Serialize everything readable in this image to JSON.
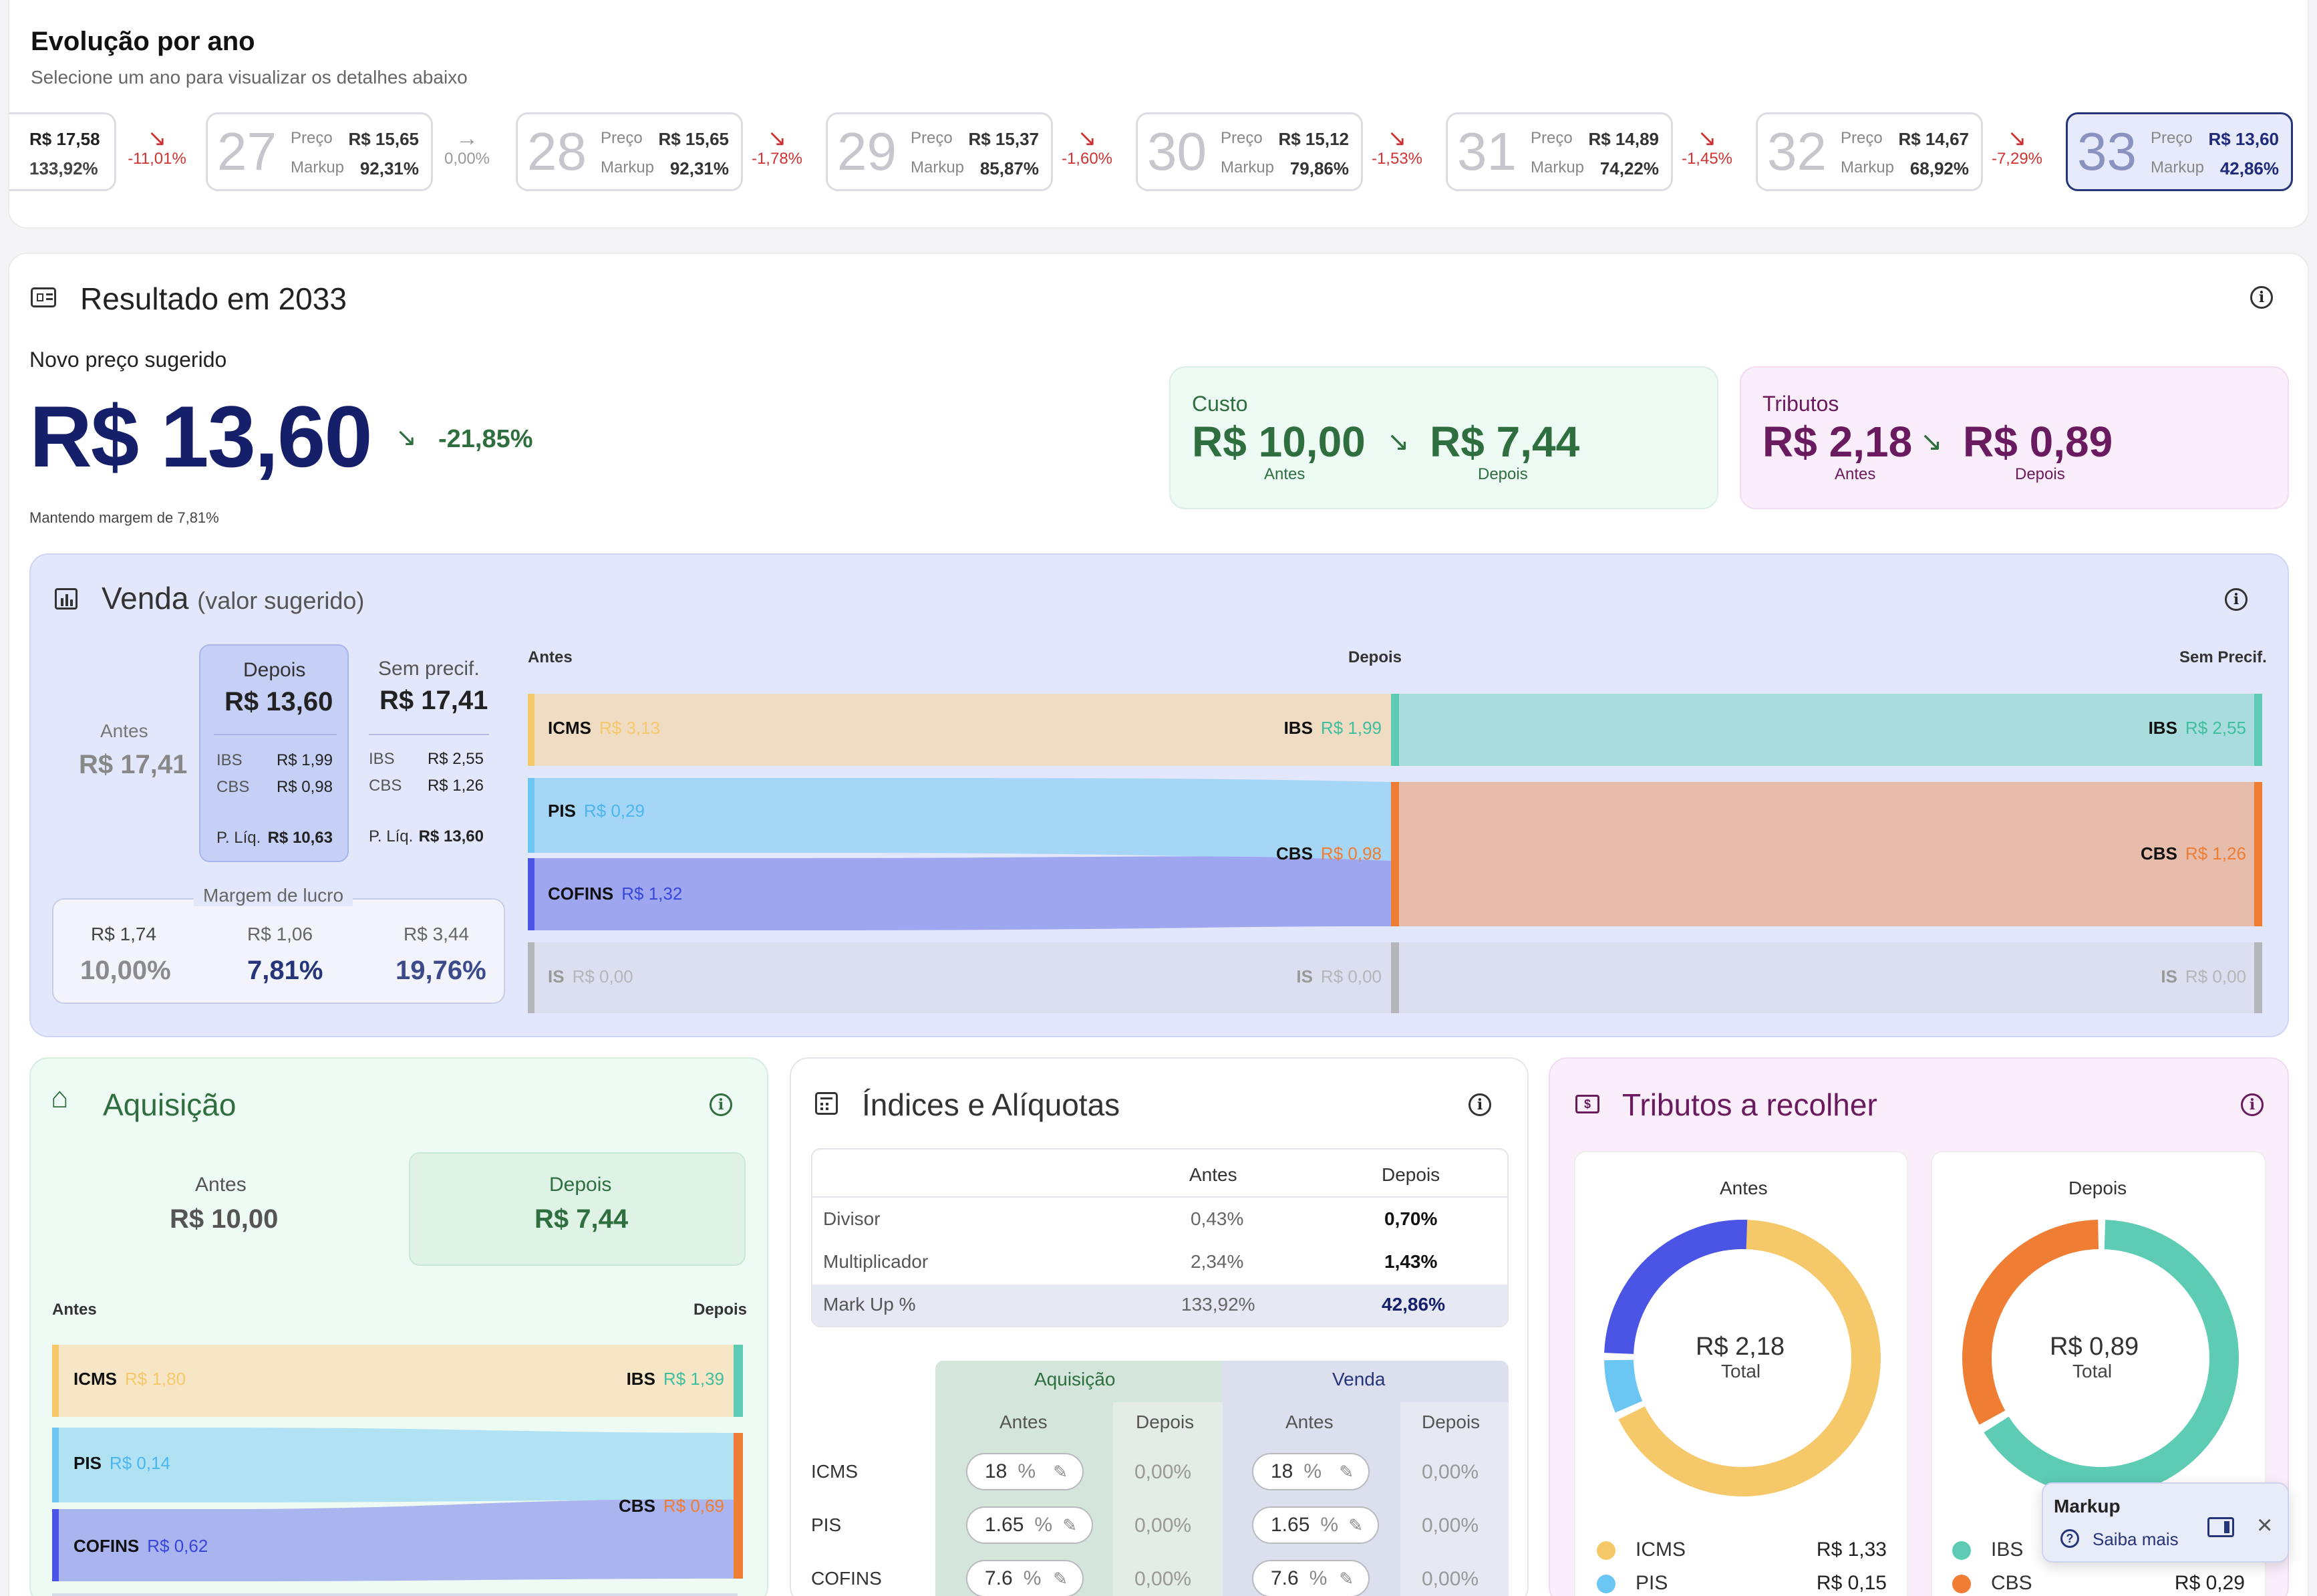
{
  "evolution": {
    "title": "Evolução por ano",
    "subtitle": "Selecione um ano para visualizar os detalhes abaixo",
    "first": {
      "price": "R$ 17,58",
      "markup": "133,92%"
    },
    "deltas": [
      "-11,01%",
      "0,00%",
      "-1,78%",
      "-1,60%",
      "-1,53%",
      "-1,45%",
      "-7,29%"
    ],
    "price_label": "Preço",
    "markup_label": "Markup",
    "years": [
      {
        "year": "27",
        "price": "R$ 15,65",
        "markup": "92,31%"
      },
      {
        "year": "28",
        "price": "R$ 15,65",
        "markup": "92,31%"
      },
      {
        "year": "29",
        "price": "R$ 15,37",
        "markup": "85,87%"
      },
      {
        "year": "30",
        "price": "R$ 15,12",
        "markup": "79,86%"
      },
      {
        "year": "31",
        "price": "R$ 14,89",
        "markup": "74,22%"
      },
      {
        "year": "32",
        "price": "R$ 14,67",
        "markup": "68,92%"
      },
      {
        "year": "33",
        "price": "R$ 13,60",
        "markup": "42,86%"
      }
    ]
  },
  "result": {
    "title": "Resultado em 2033",
    "suggested_label": "Novo preço sugerido",
    "price": "R$ 13,60",
    "delta": "-21,85%",
    "margin_note": "Mantendo margem de 7,81%",
    "cost": {
      "title": "Custo",
      "before": "R$ 10,00",
      "after": "R$ 7,44",
      "before_label": "Antes",
      "after_label": "Depois"
    },
    "taxes": {
      "title": "Tributos",
      "before": "R$ 2,18",
      "after": "R$ 0,89",
      "before_label": "Antes",
      "after_label": "Depois"
    }
  },
  "venda": {
    "title": "Venda",
    "title_suffix": "(valor sugerido)",
    "antes_label": "Antes",
    "antes_value": "R$ 17,41",
    "depois_label": "Depois",
    "depois_value": "R$ 13,60",
    "depois_ibs": "R$ 1,99",
    "depois_cbs": "R$ 0,98",
    "depois_pliq": "R$ 10,63",
    "sem_label": "Sem precif.",
    "sem_value": "R$ 17,41",
    "sem_ibs": "R$ 2,55",
    "sem_cbs": "R$ 1,26",
    "sem_pliq": "R$ 13,60",
    "ibs_label": "IBS",
    "cbs_label": "CBS",
    "pliq_label": "P. Líq.",
    "margin_title": "Margem de lucro",
    "margins": [
      {
        "value": "R$ 1,74",
        "pct": "10,00%"
      },
      {
        "value": "R$ 1,06",
        "pct": "7,81%"
      },
      {
        "value": "R$ 3,44",
        "pct": "19,76%"
      }
    ],
    "col_antes": "Antes",
    "col_depois": "Depois",
    "col_sem": "Sem Precif.",
    "icms": "R$ 3,13",
    "pis": "R$ 0,29",
    "cofins": "R$ 1,32",
    "is_antes": "R$ 0,00",
    "ibs_d": "R$ 1,99",
    "cbs_d": "R$ 0,98",
    "is_d": "R$ 0,00",
    "ibs_s": "R$ 2,55",
    "cbs_s": "R$ 1,26",
    "is_s": "R$ 0,00",
    "n_icms": "ICMS",
    "n_pis": "PIS",
    "n_cofins": "COFINS",
    "n_is": "IS",
    "n_ibs": "IBS",
    "n_cbs": "CBS"
  },
  "aquisicao": {
    "title": "Aquisição",
    "antes_label": "Antes",
    "antes_value": "R$ 10,00",
    "depois_label": "Depois",
    "depois_value": "R$ 7,44",
    "col_antes": "Antes",
    "col_depois": "Depois",
    "icms": "R$ 1,80",
    "pis": "R$ 0,14",
    "cofins": "R$ 0,62",
    "ibs": "R$ 1,39",
    "cbs": "R$ 0,69"
  },
  "indices": {
    "title": "Índices e Alíquotas",
    "col_antes": "Antes",
    "col_depois": "Depois",
    "rows": [
      {
        "label": "Divisor",
        "antes": "0,43%",
        "depois": "0,70%"
      },
      {
        "label": "Multiplicador",
        "antes": "2,34%",
        "depois": "1,43%"
      },
      {
        "label": "Mark Up %",
        "antes": "133,92%",
        "depois": "42,86%"
      }
    ],
    "grp_aq": "Aquisição",
    "grp_venda": "Venda",
    "aliq": [
      {
        "label": "ICMS",
        "aq": "18",
        "aq_d": "0,00%",
        "v": "18",
        "v_d": "0,00%"
      },
      {
        "label": "PIS",
        "aq": "1.65",
        "aq_d": "0,00%",
        "v": "1.65",
        "v_d": "0,00%"
      },
      {
        "label": "COFINS",
        "aq": "7.6",
        "aq_d": "0,00%",
        "v": "7.6",
        "v_d": "0,00%"
      }
    ],
    "pct": "%"
  },
  "tributos": {
    "title": "Tributos a recolher",
    "antes": {
      "label": "Antes",
      "total": "R$ 2,18",
      "total_label": "Total",
      "legend": [
        {
          "name": "ICMS",
          "value": "R$ 1,33"
        },
        {
          "name": "PIS",
          "value": "R$ 0,15"
        }
      ]
    },
    "depois": {
      "label": "Depois",
      "total": "R$ 0,89",
      "total_label": "Total",
      "legend": [
        {
          "name": "IBS",
          "value": ""
        },
        {
          "name": "CBS",
          "value": "R$ 0,29"
        }
      ]
    }
  },
  "toast": {
    "title": "Markup",
    "link": "Saiba mais"
  },
  "colors": {
    "navy": "#16206a",
    "green": "#2f6e3e",
    "purple": "#6a1a5e",
    "icms": "#f5c96a",
    "pis": "#6cc6f4",
    "cofins": "#4a55e6",
    "ibs": "#5ecbb4",
    "cbs": "#ef7e34"
  }
}
